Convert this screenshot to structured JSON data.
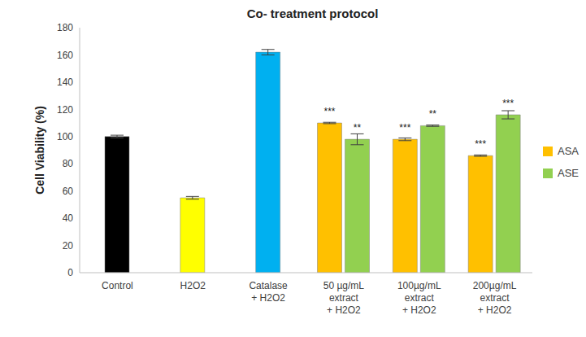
{
  "chart_data": {
    "type": "bar",
    "title": "Co- treatment protocol",
    "y_label": "Cell Viability (%)",
    "categories": [
      "Control",
      "H2O2",
      "Catalase\n+ H2O2",
      "50 µg/mL\nextract\n+ H2O2",
      "100µg/mL\nextract\n+ H2O2",
      "200µg/mL\nextract\n+ H2O2"
    ],
    "series": [
      {
        "colors": [
          "#000000",
          "#ffff00",
          "#00b0f0",
          null,
          null,
          null
        ],
        "values": [
          100,
          55,
          162,
          null,
          null,
          null
        ],
        "errors": [
          1,
          1,
          2,
          null,
          null,
          null
        ]
      },
      {
        "name": "ASA",
        "color": "#ffc000",
        "values": [
          null,
          null,
          null,
          110,
          98,
          86
        ],
        "errors": [
          null,
          null,
          null,
          0.5,
          1,
          0.5
        ],
        "significance": [
          null,
          null,
          null,
          "***",
          "***",
          "***"
        ]
      },
      {
        "name": "ASE",
        "color": "#92d050",
        "values": [
          null,
          null,
          null,
          98,
          108,
          116
        ],
        "errors": [
          null,
          null,
          null,
          4,
          0.5,
          3
        ],
        "significance": [
          null,
          null,
          null,
          "**",
          "**",
          "***"
        ]
      }
    ],
    "ylim": [
      0,
      180
    ],
    "yticks": [
      0,
      20,
      40,
      60,
      80,
      100,
      120,
      140,
      160,
      180
    ],
    "grid": false,
    "legend": "right"
  }
}
